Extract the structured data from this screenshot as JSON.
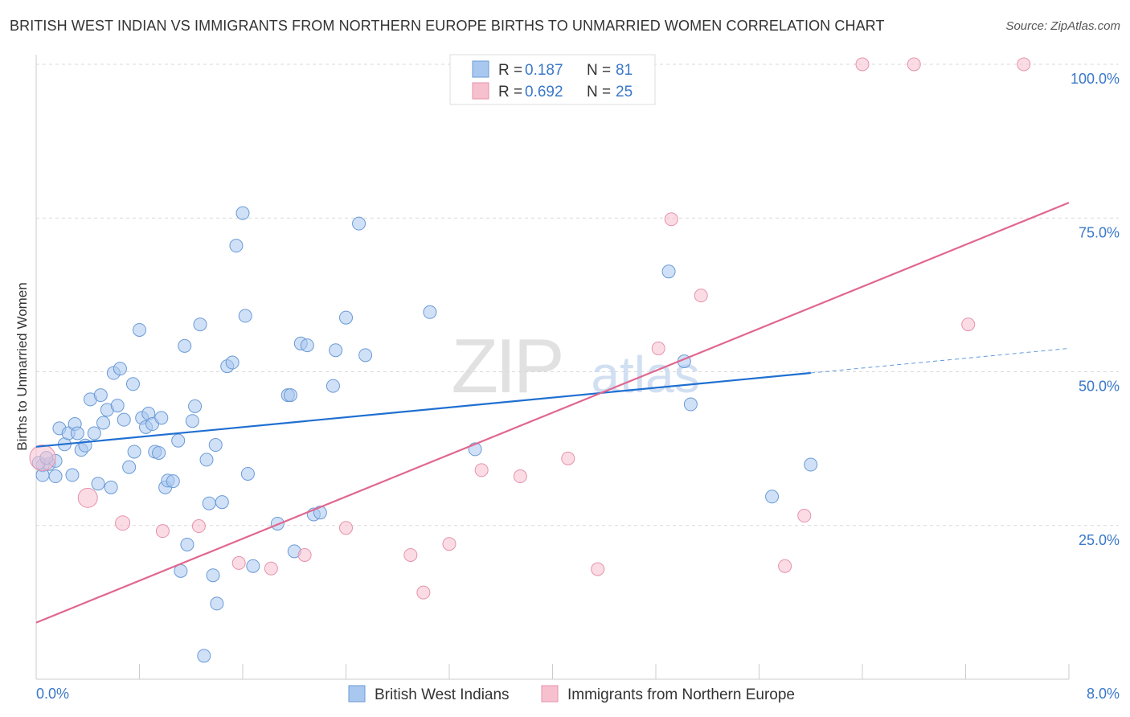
{
  "title": "BRITISH WEST INDIAN VS IMMIGRANTS FROM NORTHERN EUROPE BIRTHS TO UNMARRIED WOMEN CORRELATION CHART",
  "source": "Source: ZipAtlas.com",
  "watermark": {
    "zip": "ZIP",
    "atlas": "atlas"
  },
  "colors": {
    "blue_fill": "#a9c8f0",
    "blue_stroke": "#6a9ad6",
    "blue_line": "#1f6fd1",
    "pink_fill": "#f7c0cf",
    "pink_stroke": "#e592ab",
    "pink_line": "#e0678f",
    "label_blue": "#3a78c9",
    "grid": "#d9d9d9",
    "axis": "#cccccc"
  },
  "legend_top": [
    {
      "series": "blue",
      "r_label": "R =",
      "r_value": "0.187",
      "n_label": "N =",
      "n_value": "81"
    },
    {
      "series": "pink",
      "r_label": "R =",
      "r_value": "0.692",
      "n_label": "N =",
      "n_value": "25"
    }
  ],
  "chart_data": {
    "type": "scatter",
    "title": "BRITISH WEST INDIAN VS IMMIGRANTS FROM NORTHERN EUROPE BIRTHS TO UNMARRIED WOMEN CORRELATION CHART",
    "xlabel": "",
    "ylabel": "Births to Unmarried Women",
    "xlim": [
      0,
      8
    ],
    "ylim": [
      0,
      100
    ],
    "x_tick_labels": [
      {
        "value": 0,
        "label": "0.0%"
      },
      {
        "value": 8,
        "label": "8.0%"
      }
    ],
    "x_minor_ticks": [
      0.8,
      1.6,
      2.4,
      3.2,
      4.0,
      4.8,
      5.6,
      6.4,
      7.2,
      8.0
    ],
    "y_ticks": [
      {
        "value": 25,
        "label": "25.0%"
      },
      {
        "value": 50,
        "label": "50.0%"
      },
      {
        "value": 75,
        "label": "75.0%"
      },
      {
        "value": 100,
        "label": "100.0%"
      }
    ],
    "series": [
      {
        "name": "British West Indians",
        "color": "blue",
        "trend": {
          "x0": 0,
          "y0": 37.8,
          "x1": 6.0,
          "y1": 49.8,
          "dash_to_x": 8.0,
          "dash_to_y": 53.8
        },
        "points": [
          [
            0.05,
            34.8
          ],
          [
            0.05,
            33.2
          ],
          [
            0.1,
            35.0
          ],
          [
            0.15,
            35.5
          ],
          [
            0.15,
            33.0
          ],
          [
            0.18,
            40.8
          ],
          [
            0.22,
            38.2
          ],
          [
            0.25,
            40.0
          ],
          [
            0.28,
            33.2
          ],
          [
            0.3,
            41.5
          ],
          [
            0.32,
            40.0
          ],
          [
            0.35,
            37.3
          ],
          [
            0.38,
            38.0
          ],
          [
            0.42,
            45.5
          ],
          [
            0.45,
            40.0
          ],
          [
            0.48,
            31.8
          ],
          [
            0.5,
            46.2
          ],
          [
            0.52,
            41.7
          ],
          [
            0.55,
            43.8
          ],
          [
            0.58,
            31.2
          ],
          [
            0.6,
            49.8
          ],
          [
            0.63,
            44.5
          ],
          [
            0.65,
            50.5
          ],
          [
            0.68,
            42.2
          ],
          [
            0.72,
            34.5
          ],
          [
            0.75,
            48.0
          ],
          [
            0.76,
            37.0
          ],
          [
            0.8,
            56.8
          ],
          [
            0.82,
            42.5
          ],
          [
            0.85,
            41.0
          ],
          [
            0.87,
            43.2
          ],
          [
            0.9,
            41.5
          ],
          [
            0.92,
            37.0
          ],
          [
            0.95,
            36.8
          ],
          [
            0.97,
            42.5
          ],
          [
            1.0,
            31.2
          ],
          [
            1.02,
            32.3
          ],
          [
            1.06,
            32.2
          ],
          [
            1.1,
            38.8
          ],
          [
            1.12,
            17.6
          ],
          [
            1.15,
            54.2
          ],
          [
            1.17,
            21.9
          ],
          [
            1.21,
            42.0
          ],
          [
            1.23,
            44.4
          ],
          [
            1.27,
            57.7
          ],
          [
            1.3,
            3.8
          ],
          [
            1.32,
            35.7
          ],
          [
            1.34,
            28.6
          ],
          [
            1.37,
            16.9
          ],
          [
            1.39,
            38.1
          ],
          [
            1.4,
            12.3
          ],
          [
            1.44,
            28.8
          ],
          [
            1.48,
            50.9
          ],
          [
            1.52,
            51.5
          ],
          [
            1.55,
            70.5
          ],
          [
            1.6,
            75.8
          ],
          [
            1.62,
            59.1
          ],
          [
            1.64,
            33.4
          ],
          [
            1.68,
            18.4
          ],
          [
            1.87,
            25.3
          ],
          [
            1.95,
            46.2
          ],
          [
            1.97,
            46.2
          ],
          [
            2.0,
            20.8
          ],
          [
            2.05,
            54.6
          ],
          [
            2.1,
            54.3
          ],
          [
            2.15,
            26.8
          ],
          [
            2.2,
            27.1
          ],
          [
            2.3,
            47.7
          ],
          [
            2.32,
            53.5
          ],
          [
            2.4,
            58.8
          ],
          [
            2.5,
            74.1
          ],
          [
            2.55,
            52.7
          ],
          [
            3.05,
            59.7
          ],
          [
            3.4,
            37.4
          ],
          [
            4.9,
            66.3
          ],
          [
            5.02,
            51.7
          ],
          [
            5.07,
            44.7
          ],
          [
            5.7,
            29.7
          ],
          [
            6.0,
            34.9
          ],
          [
            0.02,
            35.2
          ],
          [
            0.08,
            36.0
          ]
        ]
      },
      {
        "name": "Immigrants from Northern Europe",
        "color": "pink",
        "trend": {
          "x0": 0,
          "y0": 9.2,
          "x1": 8.0,
          "y1": 77.5
        },
        "points": [
          [
            0.05,
            36.0
          ],
          [
            0.4,
            29.5
          ],
          [
            0.67,
            25.4
          ],
          [
            0.98,
            24.1
          ],
          [
            1.26,
            24.9
          ],
          [
            1.57,
            18.9
          ],
          [
            1.82,
            18.0
          ],
          [
            2.08,
            20.2
          ],
          [
            2.4,
            24.6
          ],
          [
            2.9,
            20.2
          ],
          [
            3.0,
            14.1
          ],
          [
            3.2,
            22.0
          ],
          [
            3.45,
            34.0
          ],
          [
            3.75,
            33.0
          ],
          [
            4.12,
            35.9
          ],
          [
            4.35,
            17.9
          ],
          [
            4.82,
            53.8
          ],
          [
            4.92,
            74.8
          ],
          [
            5.15,
            62.4
          ],
          [
            5.8,
            18.4
          ],
          [
            5.95,
            26.6
          ],
          [
            6.4,
            100.0
          ],
          [
            6.8,
            100.0
          ],
          [
            7.22,
            57.7
          ],
          [
            7.65,
            100.0
          ]
        ]
      }
    ],
    "legend_bottom": [
      "British West Indians",
      "Immigrants from Northern Europe"
    ]
  }
}
